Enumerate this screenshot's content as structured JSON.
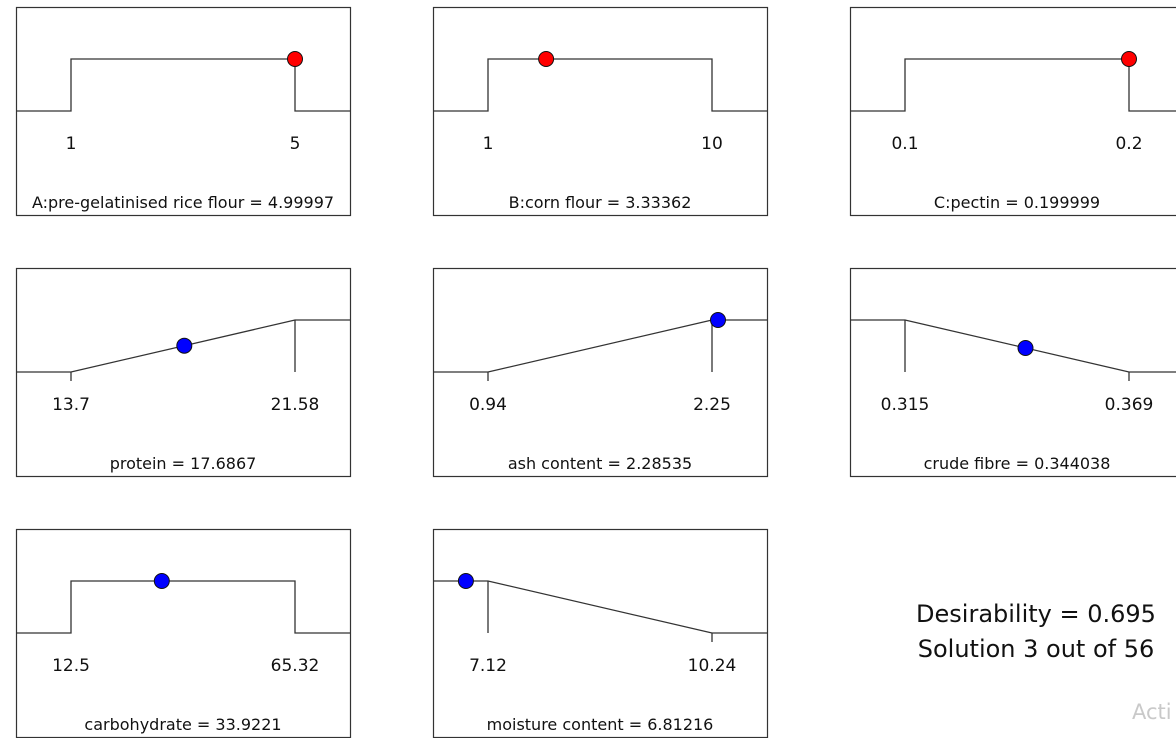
{
  "panels": [
    {
      "label": "A:pre-gelatinised rice flour = 4.99997",
      "low_label": "1",
      "high_label": "5",
      "low": 1,
      "high": 5,
      "value": 4.99997,
      "shape": "range",
      "point_color": "red"
    },
    {
      "label": "B:corn flour = 3.33362",
      "low_label": "1",
      "high_label": "10",
      "low": 1,
      "high": 10,
      "value": 3.33362,
      "shape": "range",
      "point_color": "red"
    },
    {
      "label": "C:pectin = 0.199999",
      "low_label": "0.1",
      "high_label": "0.2",
      "low": 0.1,
      "high": 0.2,
      "value": 0.199999,
      "shape": "range",
      "point_color": "red"
    },
    {
      "label": "protein = 17.6867",
      "low_label": "13.7",
      "high_label": "21.58",
      "low": 13.7,
      "high": 21.58,
      "value": 17.6867,
      "shape": "maximize",
      "point_color": "blue"
    },
    {
      "label": "ash content = 2.28535",
      "low_label": "0.94",
      "high_label": "2.25",
      "low": 0.94,
      "high": 2.25,
      "value": 2.28535,
      "shape": "maximize",
      "point_color": "blue"
    },
    {
      "label": "crude fibre = 0.344038",
      "low_label": "0.315",
      "high_label": "0.369",
      "low": 0.315,
      "high": 0.369,
      "value": 0.344038,
      "shape": "minimize",
      "point_color": "blue"
    },
    {
      "label": "carbohydrate = 33.9221",
      "low_label": "12.5",
      "high_label": "65.32",
      "low": 12.5,
      "high": 65.32,
      "value": 33.9221,
      "shape": "range",
      "point_color": "blue"
    },
    {
      "label": "moisture content = 6.81216",
      "low_label": "7.12",
      "high_label": "10.24",
      "low": 7.12,
      "high": 10.24,
      "value": 6.81216,
      "shape": "minimize",
      "point_color": "blue"
    }
  ],
  "summary": {
    "desirability": "Desirability = 0.695",
    "solution": "Solution 3 out of 56"
  },
  "watermark": "Acti",
  "colors": {
    "red": "#ff0000",
    "blue": "#0000ff",
    "line": "#333333",
    "frame": "#333333"
  }
}
